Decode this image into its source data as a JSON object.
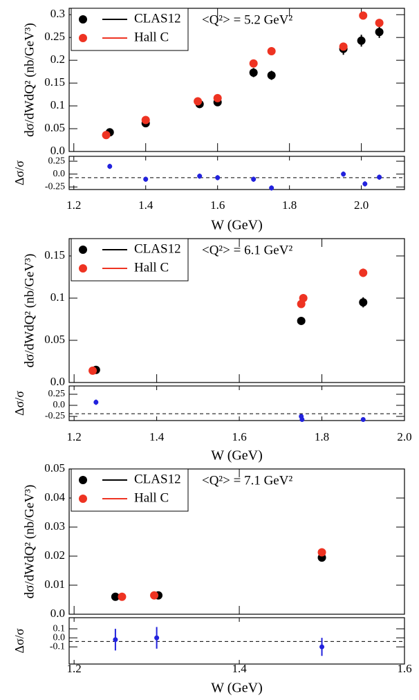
{
  "chart_data": [
    {
      "type": "scatter",
      "annotation": "<Q²> = 5.2 GeV²",
      "y_label": "dσ/dWdQ² (nb/GeV³)",
      "ratio_label": "Δσ/σ",
      "x_label": "W (GeV)",
      "xlim": [
        1.187,
        2.12
      ],
      "xticks": [
        1.2,
        1.4,
        1.6,
        1.8,
        {
          "value": 2,
          "label": "2.0"
        }
      ],
      "main": {
        "ylim": [
          0,
          0.314
        ],
        "yticks": [
          {
            "value": 0,
            "label": "0.0"
          },
          0.05,
          0.1,
          0.15,
          0.2,
          0.25,
          0.3
        ],
        "series": [
          {
            "name": "CLAS12",
            "color": "#000000",
            "x": [
              1.3,
              1.4,
              1.55,
              1.6,
              1.7,
              1.75,
              1.95,
              2.0,
              2.05
            ],
            "values": [
              0.042,
              0.062,
              0.104,
              0.108,
              0.173,
              0.167,
              0.225,
              0.243,
              0.262
            ],
            "errors": [
              0.003,
              0.004,
              0.005,
              0.005,
              0.01,
              0.01,
              0.013,
              0.013,
              0.013
            ]
          },
          {
            "name": "Hall C",
            "color": "#ee3322",
            "x": [
              1.29,
              1.4,
              1.545,
              1.6,
              1.7,
              1.75,
              1.95,
              2.005,
              2.05
            ],
            "values": [
              0.036,
              0.069,
              0.11,
              0.117,
              0.193,
              0.22,
              0.23,
              0.298,
              0.282
            ],
            "errors": [
              0.002,
              0.003,
              0.003,
              0.003,
              0.004,
              0.004,
              0.005,
              0.006,
              0.008
            ]
          }
        ]
      },
      "ratio": {
        "ylim": [
          -0.3,
          0.345
        ],
        "yticks": [
          0.25,
          {
            "value": 0,
            "label": "0.0"
          },
          -0.25
        ],
        "refline": -0.07,
        "series": [
          {
            "color": "#2222dd",
            "x": [
              1.3,
              1.4,
              1.55,
              1.6,
              1.7,
              1.75,
              1.95,
              2.01,
              2.05
            ],
            "values": [
              0.15,
              -0.1,
              -0.04,
              -0.07,
              -0.1,
              -0.27,
              0.0,
              -0.19,
              -0.06
            ],
            "errors": [
              0.05,
              0.05,
              0.05,
              0.05,
              0.05,
              0.05,
              0.05,
              0.05,
              0.05
            ]
          }
        ]
      }
    },
    {
      "type": "scatter",
      "annotation": "<Q²> = 6.1 GeV²",
      "y_label": "dσ/dWdQ² (nb/GeV³)",
      "ratio_label": "Δσ/σ",
      "x_label": "W (GeV)",
      "xlim": [
        1.188,
        2.0
      ],
      "xticks": [
        1.2,
        1.4,
        1.6,
        1.8,
        {
          "value": 2,
          "label": "2.0"
        }
      ],
      "main": {
        "ylim": [
          0,
          0.1705
        ],
        "yticks": [
          {
            "value": 0,
            "label": "0.0"
          },
          0.05,
          0.1,
          0.15
        ],
        "series": [
          {
            "name": "CLAS12",
            "color": "#000000",
            "x": [
              1.253,
              1.75,
              1.9
            ],
            "values": [
              0.015,
              0.073,
              0.095
            ],
            "errors": [
              0.001,
              0.004,
              0.006
            ]
          },
          {
            "name": "Hall C",
            "color": "#ee3322",
            "x": [
              1.245,
              1.75,
              1.755,
              1.9
            ],
            "values": [
              0.014,
              0.093,
              0.1,
              0.13
            ],
            "errors": [
              0.001,
              0.004,
              0.004,
              0.005
            ]
          }
        ]
      },
      "ratio": {
        "ylim": [
          -0.344,
          0.4375
        ],
        "yticks": [
          0.25,
          {
            "value": 0,
            "label": "0.0"
          },
          -0.25
        ],
        "refline": -0.19,
        "series": [
          {
            "color": "#2222dd",
            "x": [
              1.253,
              1.75,
              1.752,
              1.9
            ],
            "values": [
              0.07,
              -0.25,
              -0.32,
              -0.32
            ],
            "errors": [
              0.06,
              0.05,
              0.05,
              0.05
            ]
          }
        ]
      }
    },
    {
      "type": "scatter",
      "annotation": "<Q²> = 7.1 GeV²",
      "y_label": "dσ/dWdQ² (nb/GeV³)",
      "ratio_label": "Δσ/σ",
      "x_label": "W (GeV)",
      "xlim": [
        1.194,
        1.6
      ],
      "xticks": [
        1.2,
        1.4,
        1.6
      ],
      "main": {
        "ylim": [
          0,
          0.05
        ],
        "yticks": [
          {
            "value": 0,
            "label": "0.0"
          },
          0.01,
          0.02,
          0.03,
          0.04,
          0.05
        ],
        "series": [
          {
            "name": "CLAS12",
            "color": "#000000",
            "x": [
              1.25,
              1.302,
              1.5
            ],
            "values": [
              0.006,
              0.0065,
              0.0195
            ],
            "errors": [
              0.0003,
              0.0003,
              0.001
            ]
          },
          {
            "name": "Hall C",
            "color": "#ee3322",
            "x": [
              1.258,
              1.297,
              1.5
            ],
            "values": [
              0.006,
              0.0065,
              0.0213
            ],
            "errors": [
              0.0003,
              0.0003,
              0.0004
            ]
          }
        ]
      },
      "ratio": {
        "ylim": [
          -0.29,
          0.223
        ],
        "yticks": [
          0.1,
          {
            "value": 0,
            "label": "0.0"
          },
          -0.1
        ],
        "refline": -0.04,
        "series": [
          {
            "color": "#2222dd",
            "x": [
              1.25,
              1.3,
              1.5
            ],
            "values": [
              -0.02,
              0.0,
              -0.1
            ],
            "errors": [
              0.12,
              0.12,
              0.1
            ]
          }
        ]
      }
    }
  ]
}
